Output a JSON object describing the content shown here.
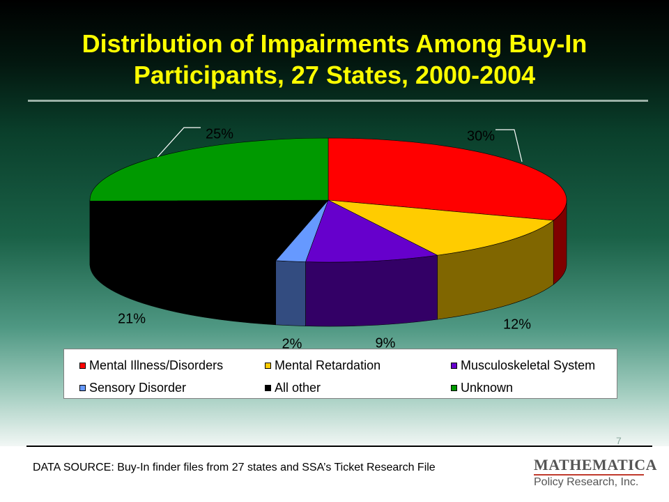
{
  "slide": {
    "title": "Distribution of Impairments Among Buy-In Participants, 27 States, 2000-2004",
    "page_number": "7",
    "source": "DATA SOURCE: Buy-In finder files from 27 states and SSA’s Ticket Research File",
    "logo": {
      "main": "MATHEMATICA",
      "sub": "Policy Research, Inc."
    }
  },
  "chart_data": {
    "type": "pie",
    "style": "3d",
    "categories": [
      "Mental Illness/Disorders",
      "Mental Retardation",
      "Musculoskeletal System",
      "Sensory Disorder",
      "All other",
      "Unknown"
    ],
    "values": [
      30,
      12,
      9,
      2,
      21,
      25
    ],
    "labels": [
      "30%",
      "12%",
      "9%",
      "2%",
      "21%",
      "25%"
    ],
    "colors": [
      "#ff0000",
      "#ffcc00",
      "#6600cc",
      "#6699ff",
      "#000000",
      "#009900"
    ],
    "side_colors": [
      "#7f0000",
      "#806600",
      "#330066",
      "#334c80",
      "#000000",
      "#004d00"
    ],
    "legend_position": "bottom"
  }
}
